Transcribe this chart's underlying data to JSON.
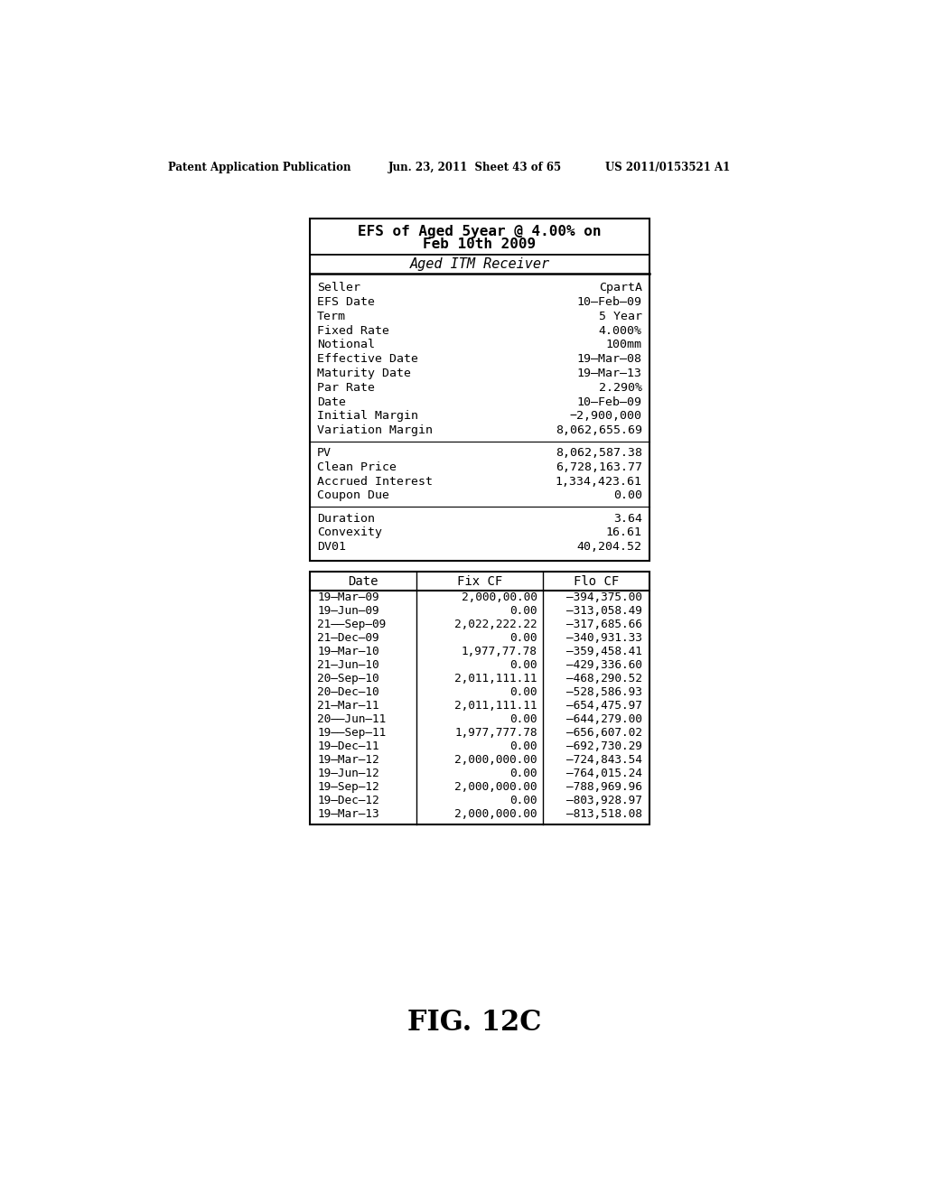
{
  "header_line1": "EFS of Aged 5year @ 4.00% on",
  "header_line2": "Feb 10th 2009",
  "subheader": "Aged ITM Receiver",
  "info_rows": [
    [
      "Seller",
      "CpartA"
    ],
    [
      "EFS Date",
      "10–Feb–09"
    ],
    [
      "Term",
      "5 Year"
    ],
    [
      "Fixed Rate",
      "4.000%"
    ],
    [
      "Notional",
      "100mm"
    ],
    [
      "Effective Date",
      "19–Mar–08"
    ],
    [
      "Maturity Date",
      "19–Mar–13"
    ],
    [
      "Par Rate",
      "2.290%"
    ],
    [
      "Date",
      "10–Feb–09"
    ],
    [
      "Initial Margin",
      "−2,900,000"
    ],
    [
      "Variation Margin",
      "8,062,655.69"
    ]
  ],
  "pv_rows": [
    [
      "PV",
      "8,062,587.38"
    ],
    [
      "Clean Price",
      "6,728,163.77"
    ],
    [
      "Accrued Interest",
      "1,334,423.61"
    ],
    [
      "Coupon Due",
      "0.00"
    ]
  ],
  "dur_rows": [
    [
      "Duration",
      "3.64"
    ],
    [
      "Convexity",
      "16.61"
    ],
    [
      "DV01",
      "40,204.52"
    ]
  ],
  "cf_header": [
    "Date",
    "Fix CF",
    "Flo CF"
  ],
  "cf_rows": [
    [
      "19–Mar–09",
      "2,000,00.00",
      "–394,375.00"
    ],
    [
      "19–Jun–09",
      "0.00",
      "–313,058.49"
    ],
    [
      "21––Sep–09",
      "2,022,222.22",
      "–317,685.66"
    ],
    [
      "21–Dec–09",
      "0.00",
      "–340,931.33"
    ],
    [
      "19–Mar–10",
      "1,977,77.78",
      "–359,458.41"
    ],
    [
      "21–Jun–10",
      "0.00",
      "–429,336.60"
    ],
    [
      "20–Sep–10",
      "2,011,111.11",
      "–468,290.52"
    ],
    [
      "20–Dec–10",
      "0.00",
      "–528,586.93"
    ],
    [
      "21–Mar–11",
      "2,011,111.11",
      "–654,475.97"
    ],
    [
      "20––Jun–11",
      "0.00",
      "–644,279.00"
    ],
    [
      "19––Sep–11",
      "1,977,777.78",
      "–656,607.02"
    ],
    [
      "19–Dec–11",
      "0.00",
      "–692,730.29"
    ],
    [
      "19–Mar–12",
      "2,000,000.00",
      "–724,843.54"
    ],
    [
      "19–Jun–12",
      "0.00",
      "–764,015.24"
    ],
    [
      "19–Sep–12",
      "2,000,000.00",
      "–788,969.96"
    ],
    [
      "19–Dec–12",
      "0.00",
      "–803,928.97"
    ],
    [
      "19–Mar–13",
      "2,000,000.00",
      "–813,518.08"
    ]
  ],
  "figure_label": "FIG. 12C",
  "patent_left": "Patent Application Publication",
  "patent_mid": "Jun. 23, 2011  Sheet 43 of 65",
  "patent_right": "US 2011/0153521 A1",
  "bg_color": "#ffffff",
  "text_color": "#000000"
}
